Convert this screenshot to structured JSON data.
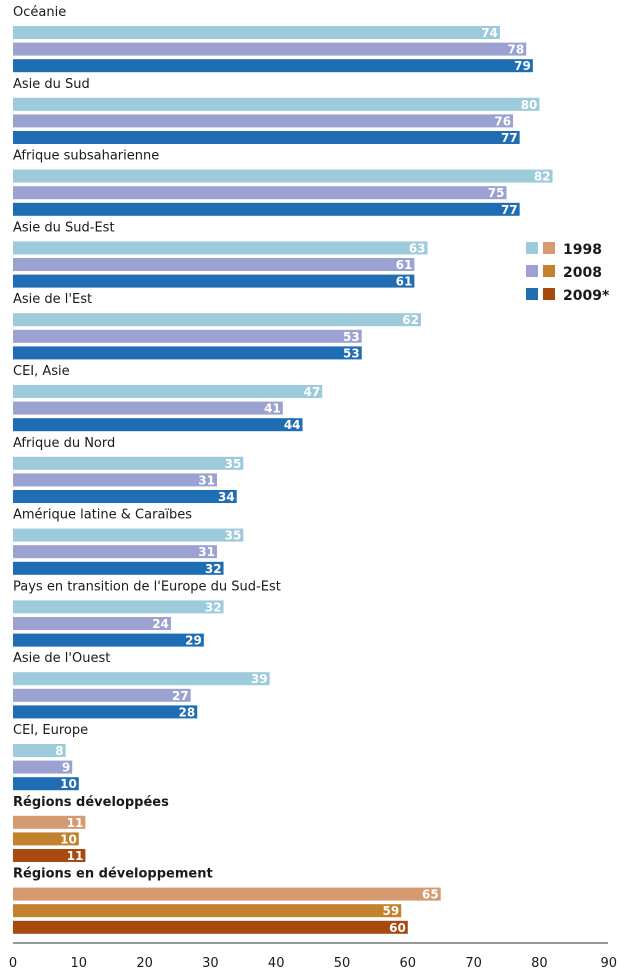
{
  "chart_data": {
    "type": "bar",
    "orientation": "horizontal",
    "series": [
      {
        "name": "1998"
      },
      {
        "name": "2008"
      },
      {
        "name": "2009*"
      }
    ],
    "groups": [
      {
        "label": "Océanie",
        "bold": false,
        "palette": "blue",
        "values": [
          74,
          78,
          79
        ]
      },
      {
        "label": "Asie du Sud",
        "bold": false,
        "palette": "blue",
        "values": [
          80,
          76,
          77
        ]
      },
      {
        "label": "Afrique subsaharienne",
        "bold": false,
        "palette": "blue",
        "values": [
          82,
          75,
          77
        ]
      },
      {
        "label": "Asie du Sud-Est",
        "bold": false,
        "palette": "blue",
        "values": [
          63,
          61,
          61
        ]
      },
      {
        "label": "Asie de l'Est",
        "bold": false,
        "palette": "blue",
        "values": [
          62,
          53,
          53
        ]
      },
      {
        "label": "CEI, Asie",
        "bold": false,
        "palette": "blue",
        "values": [
          47,
          41,
          44
        ]
      },
      {
        "label": "Afrique du Nord",
        "bold": false,
        "palette": "blue",
        "values": [
          35,
          31,
          34
        ]
      },
      {
        "label": "Amérique latine & Caraïbes",
        "bold": false,
        "palette": "blue",
        "values": [
          35,
          31,
          32
        ]
      },
      {
        "label": "Pays en transition de l'Europe du Sud-Est",
        "bold": false,
        "palette": "blue",
        "values": [
          32,
          24,
          29
        ]
      },
      {
        "label": "Asie de l'Ouest",
        "bold": false,
        "palette": "blue",
        "values": [
          39,
          27,
          28
        ]
      },
      {
        "label": "CEI, Europe",
        "bold": false,
        "palette": "blue",
        "values": [
          8,
          9,
          10
        ]
      },
      {
        "label": "Régions développées",
        "bold": true,
        "palette": "orange",
        "values": [
          11,
          10,
          11
        ]
      },
      {
        "label": "Régions en développement",
        "bold": true,
        "palette": "orange",
        "values": [
          65,
          59,
          60
        ]
      }
    ],
    "palettes": {
      "blue": [
        "#9dcbdb",
        "#9ba2d2",
        "#1f6db3"
      ],
      "orange": [
        "#d69a70",
        "#c3812e",
        "#a84a0f"
      ]
    },
    "xlim": [
      0,
      90
    ],
    "xticks": [
      0,
      10,
      20,
      30,
      40,
      50,
      60,
      70,
      80,
      90
    ],
    "legend_position": "right",
    "grid": false
  }
}
